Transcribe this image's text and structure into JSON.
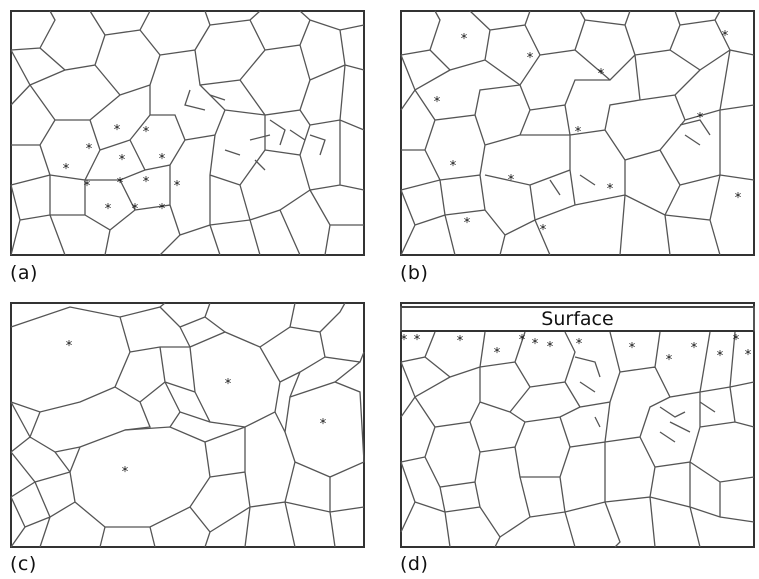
{
  "panels": [
    {
      "id": "a",
      "caption": "(a)"
    },
    {
      "id": "b",
      "caption": "(b)"
    },
    {
      "id": "c",
      "caption": "(c)"
    },
    {
      "id": "d",
      "caption": "(d)"
    }
  ],
  "surface_label": "Surface",
  "nucleus_symbol": "*",
  "colors": {
    "cell_border": "#555555",
    "frame": "#333333",
    "background": "#ffffff",
    "nucleus": "#111111"
  }
}
